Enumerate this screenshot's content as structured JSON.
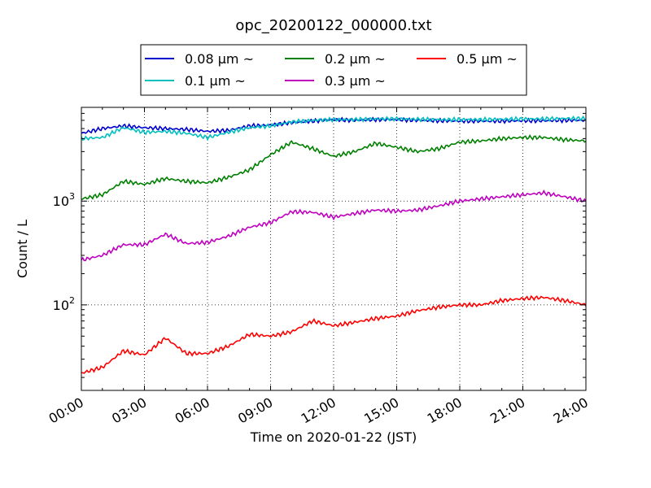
{
  "chart_data": {
    "type": "line",
    "title": "opc_20200122_000000.txt",
    "xlabel": "Time on 2020-01-22 (JST)",
    "ylabel": "Count / L",
    "x_scale": "time",
    "y_scale": "log",
    "xlim": [
      "00:00",
      "24:00"
    ],
    "ylim": [
      15,
      8000
    ],
    "x_ticks": [
      "00:00",
      "03:00",
      "06:00",
      "09:00",
      "12:00",
      "15:00",
      "18:00",
      "21:00",
      "24:00"
    ],
    "y_ticks": [
      {
        "value": 1000,
        "base": "10",
        "exp": "3"
      },
      {
        "value": 100,
        "base": "10",
        "exp": "2"
      }
    ],
    "grid": true,
    "legend_position": "top-center",
    "x": [
      "00:00",
      "01:00",
      "02:00",
      "03:00",
      "04:00",
      "05:00",
      "06:00",
      "07:00",
      "08:00",
      "09:00",
      "10:00",
      "11:00",
      "12:00",
      "13:00",
      "14:00",
      "15:00",
      "16:00",
      "17:00",
      "18:00",
      "19:00",
      "20:00",
      "21:00",
      "22:00",
      "23:00",
      "24:00"
    ],
    "series": [
      {
        "name": "0.08 µm ~",
        "color": "#0000cc",
        "values": [
          4500,
          5000,
          5300,
          5100,
          5000,
          4900,
          4700,
          4800,
          5300,
          5400,
          5700,
          5900,
          6100,
          6000,
          6100,
          6100,
          6000,
          5950,
          5900,
          5900,
          5900,
          5950,
          5950,
          6000,
          6000
        ]
      },
      {
        "name": "0.1 µm ~",
        "color": "#00bfbf",
        "values": [
          4000,
          4100,
          5100,
          4600,
          4700,
          4500,
          4100,
          4600,
          5100,
          5300,
          5800,
          6000,
          6100,
          6100,
          6200,
          6200,
          6150,
          6100,
          6100,
          6100,
          6150,
          6200,
          6200,
          6250,
          6250
        ]
      },
      {
        "name": "0.2 µm ~",
        "color": "#008000",
        "values": [
          1050,
          1150,
          1550,
          1450,
          1650,
          1550,
          1500,
          1700,
          2000,
          2800,
          3700,
          3200,
          2700,
          3000,
          3600,
          3300,
          3000,
          3200,
          3700,
          3800,
          4000,
          4100,
          4100,
          3900,
          3800
        ]
      },
      {
        "name": "0.3 µm ~",
        "color": "#bf00bf",
        "values": [
          270,
          300,
          380,
          380,
          480,
          390,
          400,
          460,
          560,
          620,
          790,
          780,
          700,
          760,
          820,
          800,
          820,
          900,
          1000,
          1050,
          1100,
          1150,
          1200,
          1100,
          1000
        ]
      },
      {
        "name": "0.5 µm ~",
        "color": "#ff0000",
        "values": [
          22,
          25,
          36,
          33,
          48,
          34,
          34,
          40,
          52,
          50,
          55,
          70,
          63,
          68,
          74,
          78,
          88,
          95,
          100,
          100,
          110,
          115,
          118,
          110,
          100
        ]
      }
    ]
  }
}
